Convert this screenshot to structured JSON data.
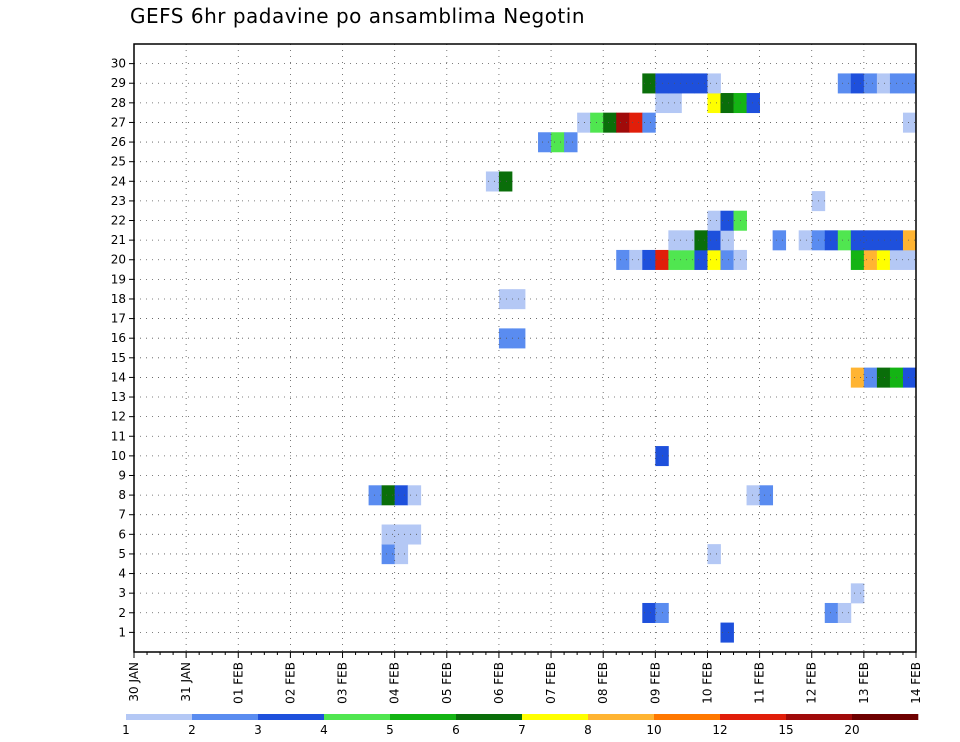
{
  "chart_data": {
    "type": "heatmap",
    "title": "GEFS 6hr padavine po ansamblima Negotin",
    "xlabel": "",
    "ylabel": "",
    "y_ticks": [
      "1",
      "2",
      "3",
      "4",
      "5",
      "6",
      "7",
      "8",
      "9",
      "10",
      "11",
      "12",
      "13",
      "14",
      "15",
      "16",
      "17",
      "18",
      "19",
      "20",
      "21",
      "22",
      "23",
      "24",
      "25",
      "26",
      "27",
      "28",
      "29",
      "30"
    ],
    "x_ticks": [
      "30 JAN",
      "31 JAN",
      "01 FEB",
      "02 FEB",
      "03 FEB",
      "04 FEB",
      "05 FEB",
      "06 FEB",
      "07 FEB",
      "08 FEB",
      "09 FEB",
      "10 FEB",
      "11 FEB",
      "12 FEB",
      "13 FEB",
      "14 FEB"
    ],
    "x_range_steps": [
      0,
      60
    ],
    "steps_per_day": 4,
    "grid": true,
    "colorbar": {
      "labels": [
        "1",
        "2",
        "3",
        "4",
        "5",
        "6",
        "7",
        "8",
        "10",
        "12",
        "15",
        "20"
      ],
      "colors": [
        "#b4c8f5",
        "#5a8cf0",
        "#1e50dc",
        "#50e650",
        "#14b414",
        "#0a6e0a",
        "#ffff00",
        "#ffb432",
        "#ff7800",
        "#e11e0a",
        "#a00a0a",
        "#6e0000"
      ]
    },
    "cells": [
      {
        "m": 1,
        "s": 45,
        "c": 2
      },
      {
        "m": 2,
        "s": 39,
        "c": 2
      },
      {
        "m": 2,
        "s": 40,
        "c": 1
      },
      {
        "m": 2,
        "s": 53,
        "c": 1
      },
      {
        "m": 2,
        "s": 54,
        "c": 0
      },
      {
        "m": 3,
        "s": 55,
        "c": 0
      },
      {
        "m": 5,
        "s": 19,
        "c": 1
      },
      {
        "m": 5,
        "s": 20,
        "c": 0
      },
      {
        "m": 5,
        "s": 44,
        "c": 0
      },
      {
        "m": 6,
        "s": 19,
        "c": 0
      },
      {
        "m": 6,
        "s": 20,
        "c": 0
      },
      {
        "m": 6,
        "s": 21,
        "c": 0
      },
      {
        "m": 8,
        "s": 18,
        "c": 1
      },
      {
        "m": 8,
        "s": 19,
        "c": 5
      },
      {
        "m": 8,
        "s": 20,
        "c": 2
      },
      {
        "m": 8,
        "s": 21,
        "c": 0
      },
      {
        "m": 8,
        "s": 47,
        "c": 0
      },
      {
        "m": 8,
        "s": 48,
        "c": 1
      },
      {
        "m": 10,
        "s": 40,
        "c": 2
      },
      {
        "m": 14,
        "s": 55,
        "c": 7
      },
      {
        "m": 14,
        "s": 56,
        "c": 1
      },
      {
        "m": 14,
        "s": 57,
        "c": 5
      },
      {
        "m": 14,
        "s": 58,
        "c": 4
      },
      {
        "m": 14,
        "s": 59,
        "c": 2
      },
      {
        "m": 16,
        "s": 28,
        "c": 1
      },
      {
        "m": 16,
        "s": 29,
        "c": 1
      },
      {
        "m": 18,
        "s": 28,
        "c": 0
      },
      {
        "m": 18,
        "s": 29,
        "c": 0
      },
      {
        "m": 20,
        "s": 37,
        "c": 1
      },
      {
        "m": 20,
        "s": 38,
        "c": 0
      },
      {
        "m": 20,
        "s": 39,
        "c": 2
      },
      {
        "m": 20,
        "s": 40,
        "c": 9
      },
      {
        "m": 20,
        "s": 41,
        "c": 3
      },
      {
        "m": 20,
        "s": 42,
        "c": 3
      },
      {
        "m": 20,
        "s": 43,
        "c": 2
      },
      {
        "m": 20,
        "s": 44,
        "c": 6
      },
      {
        "m": 20,
        "s": 45,
        "c": 1
      },
      {
        "m": 20,
        "s": 46,
        "c": 0
      },
      {
        "m": 20,
        "s": 55,
        "c": 4
      },
      {
        "m": 20,
        "s": 56,
        "c": 7
      },
      {
        "m": 20,
        "s": 57,
        "c": 6
      },
      {
        "m": 20,
        "s": 58,
        "c": 0
      },
      {
        "m": 20,
        "s": 59,
        "c": 0
      },
      {
        "m": 21,
        "s": 41,
        "c": 0
      },
      {
        "m": 21,
        "s": 42,
        "c": 0
      },
      {
        "m": 21,
        "s": 43,
        "c": 5
      },
      {
        "m": 21,
        "s": 44,
        "c": 2
      },
      {
        "m": 21,
        "s": 45,
        "c": 0
      },
      {
        "m": 21,
        "s": 49,
        "c": 1
      },
      {
        "m": 21,
        "s": 51,
        "c": 0
      },
      {
        "m": 21,
        "s": 52,
        "c": 1
      },
      {
        "m": 21,
        "s": 53,
        "c": 2
      },
      {
        "m": 21,
        "s": 54,
        "c": 3
      },
      {
        "m": 21,
        "s": 55,
        "c": 2
      },
      {
        "m": 21,
        "s": 56,
        "c": 2
      },
      {
        "m": 21,
        "s": 57,
        "c": 2
      },
      {
        "m": 21,
        "s": 58,
        "c": 2
      },
      {
        "m": 21,
        "s": 59,
        "c": 7
      },
      {
        "m": 22,
        "s": 44,
        "c": 0
      },
      {
        "m": 22,
        "s": 45,
        "c": 2
      },
      {
        "m": 22,
        "s": 46,
        "c": 3
      },
      {
        "m": 23,
        "s": 52,
        "c": 0
      },
      {
        "m": 24,
        "s": 27,
        "c": 0
      },
      {
        "m": 24,
        "s": 28,
        "c": 5
      },
      {
        "m": 26,
        "s": 31,
        "c": 1
      },
      {
        "m": 26,
        "s": 32,
        "c": 3
      },
      {
        "m": 26,
        "s": 33,
        "c": 1
      },
      {
        "m": 27,
        "s": 34,
        "c": 0
      },
      {
        "m": 27,
        "s": 35,
        "c": 3
      },
      {
        "m": 27,
        "s": 36,
        "c": 5
      },
      {
        "m": 27,
        "s": 37,
        "c": 10
      },
      {
        "m": 27,
        "s": 38,
        "c": 9
      },
      {
        "m": 27,
        "s": 39,
        "c": 1
      },
      {
        "m": 27,
        "s": 59,
        "c": 0
      },
      {
        "m": 28,
        "s": 40,
        "c": 0
      },
      {
        "m": 28,
        "s": 41,
        "c": 0
      },
      {
        "m": 28,
        "s": 44,
        "c": 6
      },
      {
        "m": 28,
        "s": 45,
        "c": 5
      },
      {
        "m": 28,
        "s": 46,
        "c": 4
      },
      {
        "m": 28,
        "s": 47,
        "c": 2
      },
      {
        "m": 29,
        "s": 39,
        "c": 5
      },
      {
        "m": 29,
        "s": 40,
        "c": 2
      },
      {
        "m": 29,
        "s": 41,
        "c": 2
      },
      {
        "m": 29,
        "s": 42,
        "c": 2
      },
      {
        "m": 29,
        "s": 43,
        "c": 2
      },
      {
        "m": 29,
        "s": 44,
        "c": 0
      },
      {
        "m": 29,
        "s": 54,
        "c": 1
      },
      {
        "m": 29,
        "s": 55,
        "c": 2
      },
      {
        "m": 29,
        "s": 56,
        "c": 1
      },
      {
        "m": 29,
        "s": 57,
        "c": 0
      },
      {
        "m": 29,
        "s": 58,
        "c": 1
      },
      {
        "m": 29,
        "s": 59,
        "c": 1
      }
    ]
  }
}
